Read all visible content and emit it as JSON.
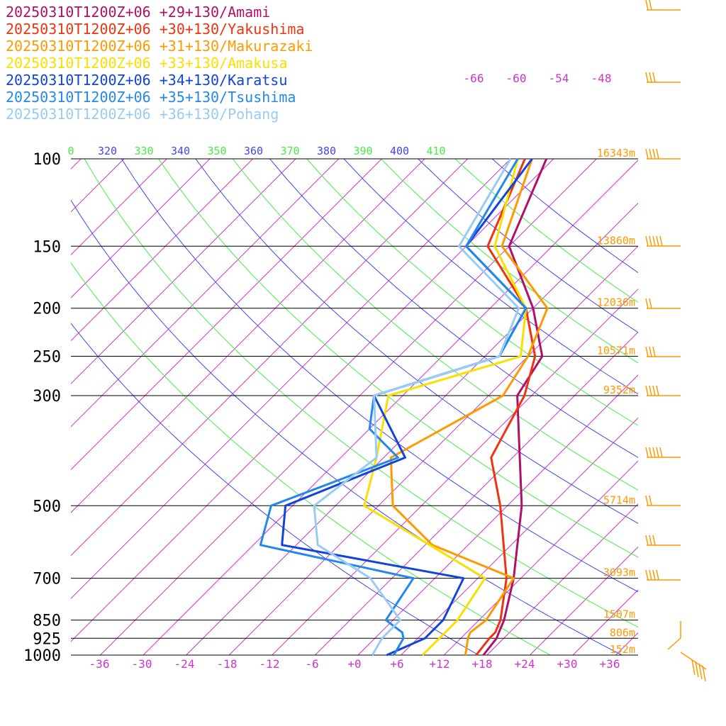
{
  "chart_data": {
    "type": "line",
    "title": "",
    "legend_position": "top-left",
    "series": [
      {
        "name": "20250310T1200Z+06 +29+130/Amami",
        "color": "#b0106a",
        "temperature": [
          [
            1000,
            17.5
          ],
          [
            925,
            17
          ],
          [
            900,
            16.5
          ],
          [
            850,
            15.5
          ],
          [
            700,
            11
          ],
          [
            500,
            2
          ],
          [
            400,
            -5
          ],
          [
            300,
            -14
          ],
          [
            250,
            -16
          ],
          [
            200,
            -24
          ],
          [
            150,
            -36
          ],
          [
            100,
            -43
          ]
        ]
      },
      {
        "name": "20250310T1200Z+06 +30+130/Yakushima",
        "color": "#ee3311",
        "temperature": [
          [
            1000,
            16.5
          ],
          [
            925,
            16
          ],
          [
            900,
            16
          ],
          [
            850,
            15
          ],
          [
            700,
            10
          ],
          [
            500,
            -1
          ],
          [
            400,
            -9
          ],
          [
            300,
            -13
          ],
          [
            250,
            -17
          ],
          [
            200,
            -25
          ],
          [
            150,
            -39
          ],
          [
            100,
            -46
          ]
        ]
      },
      {
        "name": "20250310T1200Z+06 +31+130/Makurazaki",
        "color": "#ff9900",
        "temperature": [
          [
            1000,
            15
          ],
          [
            925,
            13
          ],
          [
            900,
            12.5
          ],
          [
            850,
            13
          ],
          [
            700,
            11
          ],
          [
            600,
            -5
          ],
          [
            500,
            -16
          ],
          [
            400,
            -23
          ],
          [
            300,
            -16
          ],
          [
            250,
            -18
          ],
          [
            200,
            -22
          ],
          [
            150,
            -37
          ],
          [
            100,
            -45
          ]
        ]
      },
      {
        "name": "20250310T1200Z+06 +33+130/Amakusa",
        "color": "#f8e000",
        "temperature": [
          [
            1000,
            9
          ],
          [
            925,
            9
          ],
          [
            900,
            9
          ],
          [
            850,
            9
          ],
          [
            700,
            7
          ],
          [
            500,
            -20
          ],
          [
            400,
            -25
          ],
          [
            300,
            -32
          ],
          [
            250,
            -19
          ],
          [
            200,
            -25
          ],
          [
            150,
            -38
          ],
          [
            100,
            -47
          ]
        ]
      },
      {
        "name": "20250310T1200Z+06 +34+130/Karatsu",
        "color": "#1144dd",
        "temperature": [
          [
            1000,
            4
          ],
          [
            925,
            7
          ],
          [
            900,
            7
          ],
          [
            850,
            7
          ],
          [
            700,
            4
          ],
          [
            600,
            -26
          ],
          [
            500,
            -31
          ],
          [
            400,
            -21
          ],
          [
            300,
            -34
          ],
          [
            250,
            -22
          ],
          [
            200,
            -25
          ],
          [
            150,
            -42
          ],
          [
            100,
            -45
          ]
        ]
      },
      {
        "name": "20250310T1200Z+06 +35+130/Tsushima",
        "color": "#2288ee",
        "temperature": [
          [
            1000,
            5
          ],
          [
            925,
            4
          ],
          [
            900,
            3
          ],
          [
            850,
            -1
          ],
          [
            700,
            -3
          ],
          [
            600,
            -29
          ],
          [
            500,
            -33
          ],
          [
            400,
            -22
          ],
          [
            350,
            -30
          ],
          [
            300,
            -34
          ],
          [
            250,
            -22
          ],
          [
            200,
            -25
          ],
          [
            150,
            -42
          ],
          [
            100,
            -47
          ]
        ]
      },
      {
        "name": "20250310T1200Z+06 +36+130/Pohang",
        "color": "#99ccf4",
        "temperature": [
          [
            1000,
            2
          ],
          [
            925,
            1
          ],
          [
            900,
            1
          ],
          [
            850,
            1
          ],
          [
            700,
            -9
          ],
          [
            600,
            -21
          ],
          [
            500,
            -27
          ],
          [
            400,
            -25
          ],
          [
            300,
            -34
          ],
          [
            250,
            -22
          ],
          [
            200,
            -26
          ],
          [
            150,
            -43
          ],
          [
            100,
            -48
          ]
        ]
      }
    ],
    "pressure_ticks": [
      100,
      150,
      200,
      250,
      300,
      500,
      700,
      850,
      925,
      1000
    ],
    "pressure_tick_labels": [
      "100",
      "150",
      "200",
      "250",
      "300",
      "500",
      "700",
      "850",
      "925",
      "1000"
    ],
    "temperature_ticks": [
      "-36",
      "-30",
      "-24",
      "-18",
      "-12",
      "-6",
      "+0",
      "+6",
      "+12",
      "+18",
      "+24",
      "+30",
      "+36"
    ],
    "isotherm_labels_top": [
      "-66",
      "-60",
      "-54",
      "-48"
    ],
    "theta_labels": [
      "0",
      "320",
      "330",
      "340",
      "350",
      "360",
      "370",
      "380",
      "390",
      "400",
      "410"
    ],
    "heights": [
      {
        "p": 100,
        "label": "16343m"
      },
      {
        "p": 150,
        "label": "13860m"
      },
      {
        "p": 200,
        "label": "12036m"
      },
      {
        "p": 250,
        "label": "10571m"
      },
      {
        "p": 300,
        "label": "9352m"
      },
      {
        "p": 500,
        "label": "5714m"
      },
      {
        "p": 700,
        "label": "3093m"
      },
      {
        "p": 850,
        "label": "1507m"
      },
      {
        "p": 925,
        "label": "806m"
      },
      {
        "p": 1000,
        "label": "152m"
      }
    ],
    "xlim": [
      -40,
      40
    ],
    "ylim": [
      1000,
      100
    ],
    "y_scale": "log",
    "grid": true,
    "colors": {
      "isotherm": "#cc33cc",
      "dry_adiabat_blue": "#4444ee",
      "dry_adiabat_green": "#44ee44",
      "isobar": "#000000",
      "height_label": "#ff9900",
      "wind_barb": "#ff9900"
    }
  }
}
